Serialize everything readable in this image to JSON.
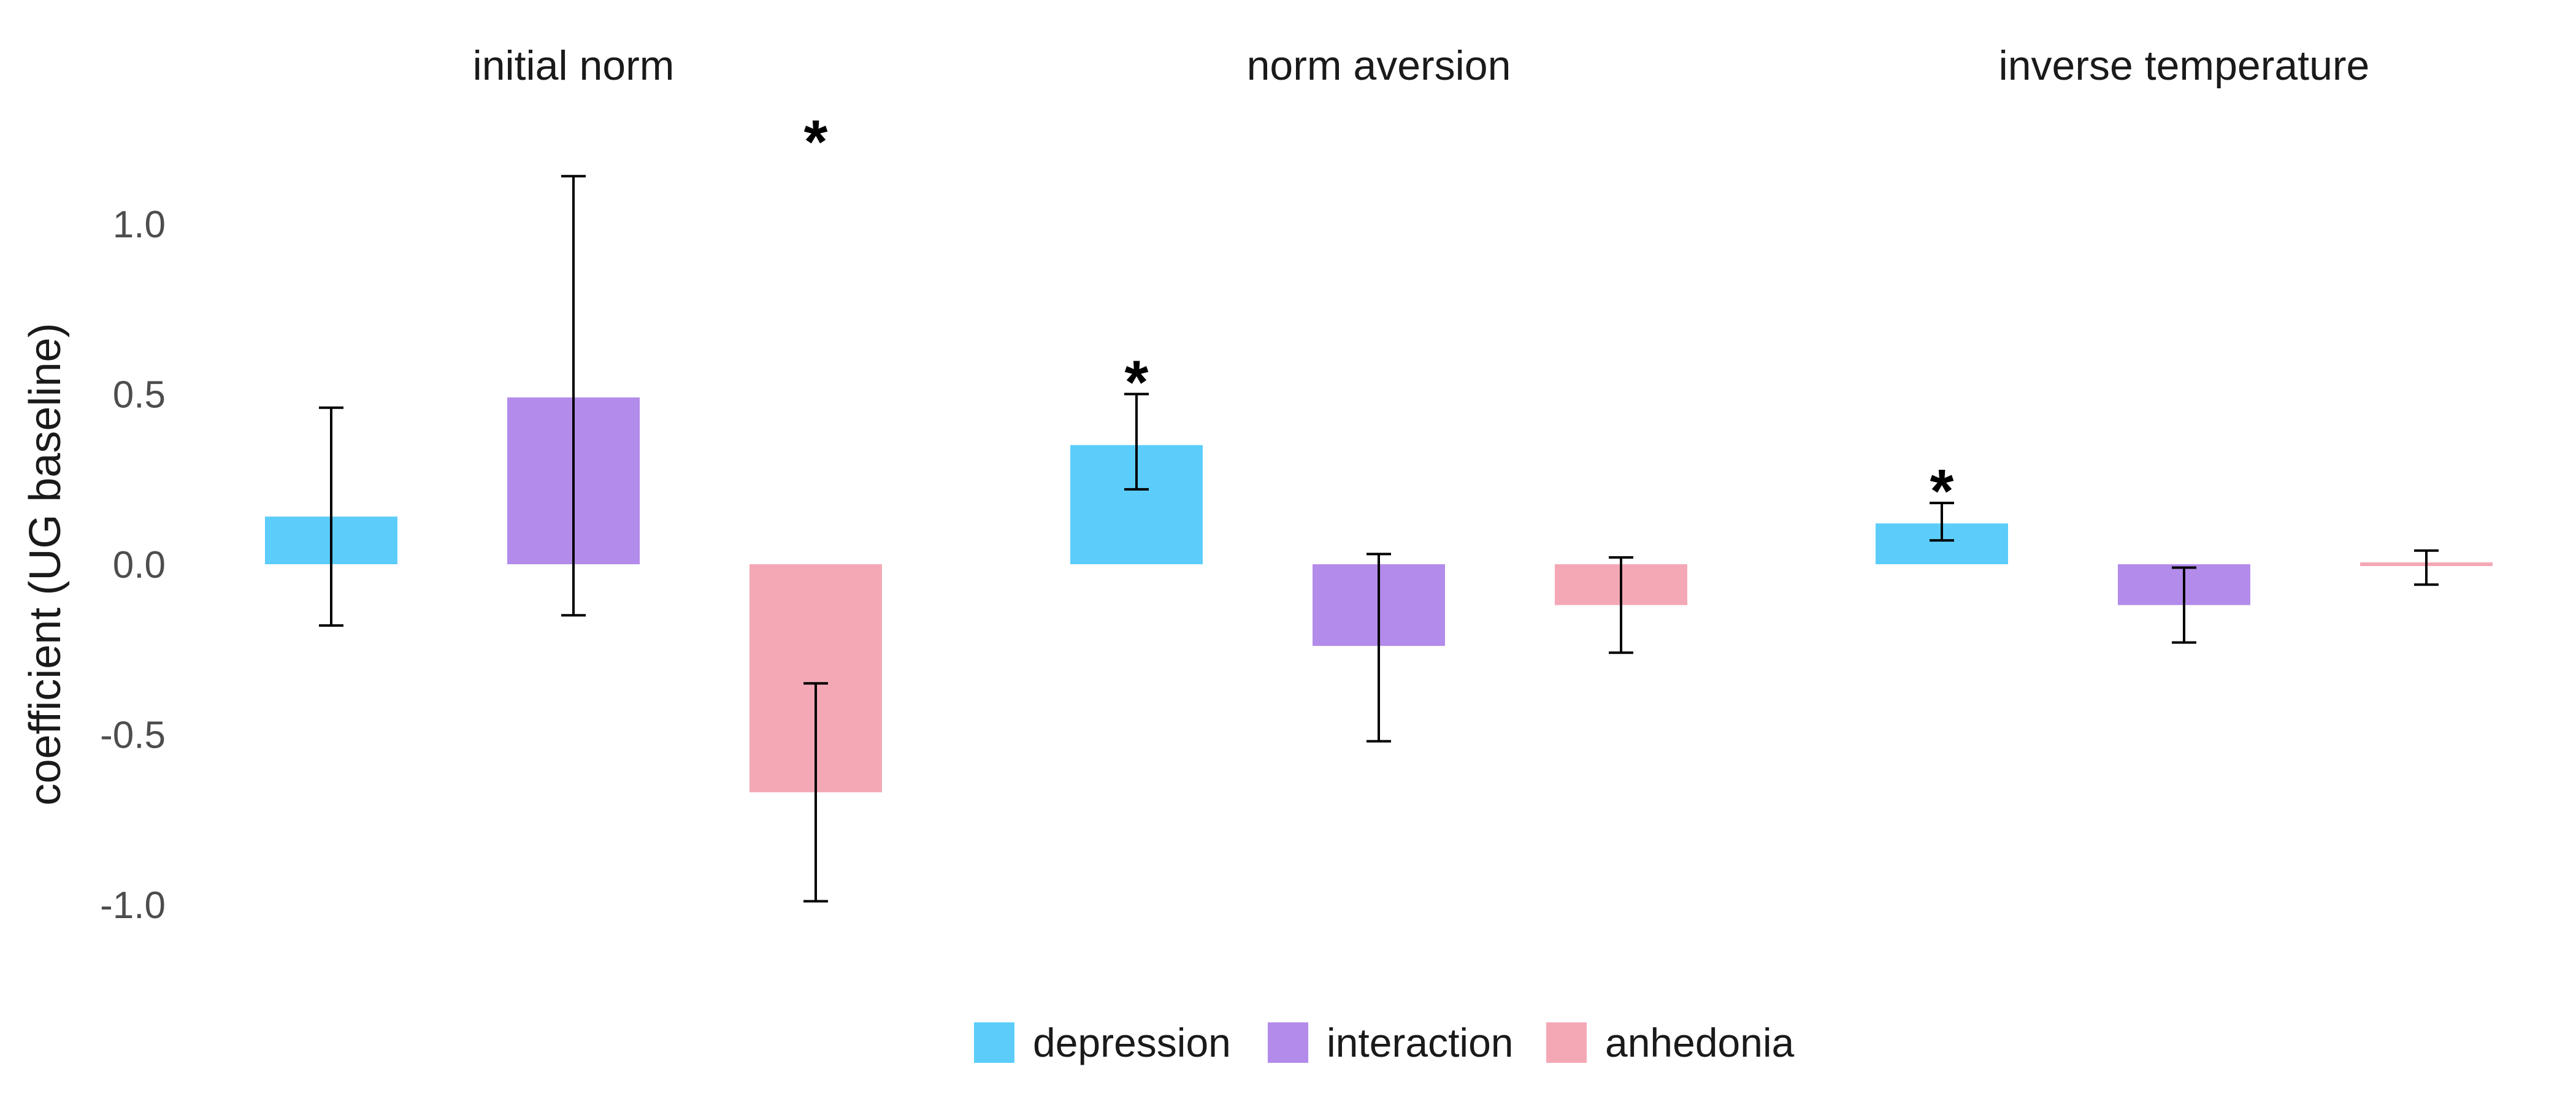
{
  "chart_data": {
    "type": "bar",
    "ylabel": "coefficient (UG baseline)",
    "ylim": [
      -1.0,
      1.0
    ],
    "y_ticks": [
      1.0,
      0.5,
      0.0,
      -0.5,
      -1.0
    ],
    "y_tick_labels": [
      "1.0",
      "0.5",
      "0.0",
      "-0.5",
      "-1.0"
    ],
    "grid": false,
    "legend_position": "bottom",
    "series_names": [
      "depression",
      "interaction",
      "anhedonia"
    ],
    "colors": {
      "depression": "#5ccdfa",
      "interaction": "#b38bea",
      "anhedonia": "#f4a8b6",
      "errorbar": "#000000"
    },
    "panels": [
      {
        "title": "initial norm",
        "bars": [
          {
            "series": "depression",
            "value": 0.14,
            "lower": -0.18,
            "upper": 0.46,
            "significance": ""
          },
          {
            "series": "interaction",
            "value": 0.49,
            "lower": -0.15,
            "upper": 1.14,
            "significance": ""
          },
          {
            "series": "anhedonia",
            "value": -0.67,
            "lower": -0.99,
            "upper": -0.35,
            "significance": "*"
          }
        ]
      },
      {
        "title": "norm aversion",
        "bars": [
          {
            "series": "depression",
            "value": 0.35,
            "lower": 0.22,
            "upper": 0.5,
            "significance": "*"
          },
          {
            "series": "interaction",
            "value": -0.24,
            "lower": -0.52,
            "upper": 0.03,
            "significance": ""
          },
          {
            "series": "anhedonia",
            "value": -0.12,
            "lower": -0.26,
            "upper": 0.02,
            "significance": ""
          }
        ]
      },
      {
        "title": "inverse temperature",
        "bars": [
          {
            "series": "depression",
            "value": 0.12,
            "lower": 0.07,
            "upper": 0.18,
            "significance": "*"
          },
          {
            "series": "interaction",
            "value": -0.12,
            "lower": -0.23,
            "upper": -0.01,
            "significance": ""
          },
          {
            "series": "anhedonia",
            "value": -0.01,
            "lower": -0.06,
            "upper": 0.04,
            "significance": ""
          }
        ]
      }
    ]
  }
}
